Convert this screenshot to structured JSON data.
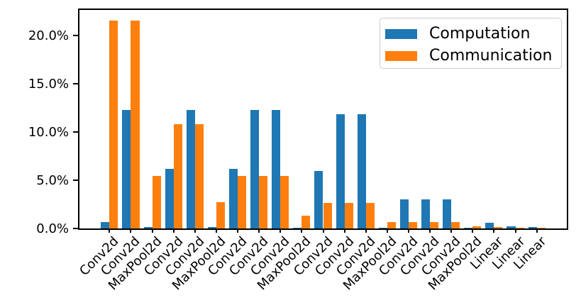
{
  "chart_data": {
    "type": "bar",
    "title": "",
    "xlabel": "",
    "ylabel": "",
    "categories": [
      "Conv2d",
      "Conv2d",
      "MaxPool2d",
      "Conv2d",
      "Conv2d",
      "MaxPool2d",
      "Conv2d",
      "Conv2d",
      "Conv2d",
      "MaxPool2d",
      "Conv2d",
      "Conv2d",
      "Conv2d",
      "MaxPool2d",
      "Conv2d",
      "Conv2d",
      "Conv2d",
      "MaxPool2d",
      "Linear",
      "Linear",
      "Linear"
    ],
    "series": [
      {
        "name": "Computation",
        "color": "#1f77b4",
        "values": [
          0.68,
          12.3,
          0.12,
          6.2,
          12.3,
          0.12,
          6.2,
          12.3,
          12.3,
          0.1,
          5.95,
          11.8,
          11.8,
          0.06,
          3.0,
          3.0,
          3.0,
          0.05,
          0.6,
          0.22,
          0.15
        ]
      },
      {
        "name": "Communication",
        "color": "#ff7f0e",
        "values": [
          21.55,
          21.55,
          5.45,
          10.8,
          10.8,
          2.75,
          5.45,
          5.45,
          5.45,
          1.35,
          2.66,
          2.66,
          2.66,
          0.68,
          0.68,
          0.68,
          0.68,
          0.2,
          0.16,
          0.1,
          0.08
        ]
      }
    ],
    "value_unit": "%",
    "ytick_values": [
      0,
      5,
      10,
      15,
      20
    ],
    "ytick_labels": [
      "0.0%",
      "5.0%",
      "10.0%",
      "15.0%",
      "20.0%"
    ],
    "ylim": [
      0,
      22.7
    ],
    "xlim": [
      -1.44,
      21.44
    ],
    "bar_width": 0.4,
    "grid": false,
    "legend_position": "upper right"
  }
}
